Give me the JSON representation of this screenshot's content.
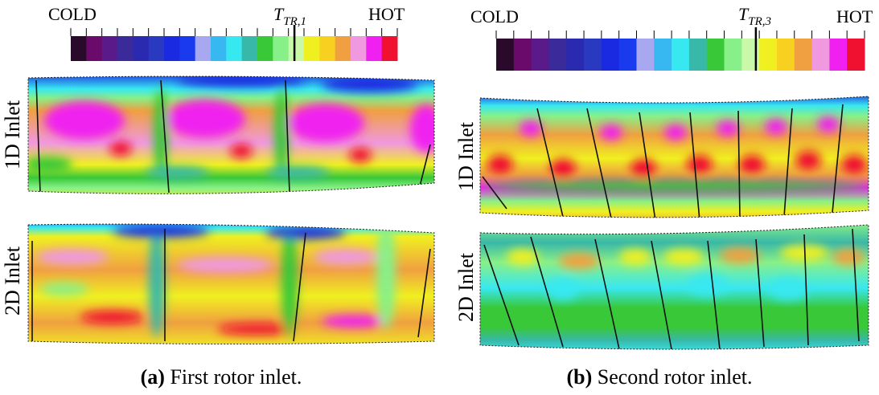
{
  "panels": [
    {
      "colorbar": {
        "cold": "COLD",
        "threshold": {
          "main": "T",
          "sub": "TR,1"
        },
        "hot": "HOT"
      },
      "rows": [
        "1D Inlet",
        "2D Inlet"
      ],
      "caption": {
        "label": "(a)",
        "text": "First rotor inlet."
      }
    },
    {
      "colorbar": {
        "cold": "COLD",
        "threshold": {
          "main": "T",
          "sub": "TR,3"
        },
        "hot": "HOT"
      },
      "rows": [
        "1D Inlet",
        "2D Inlet"
      ],
      "caption": {
        "label": "(b)",
        "text": "Second rotor inlet."
      }
    }
  ]
}
